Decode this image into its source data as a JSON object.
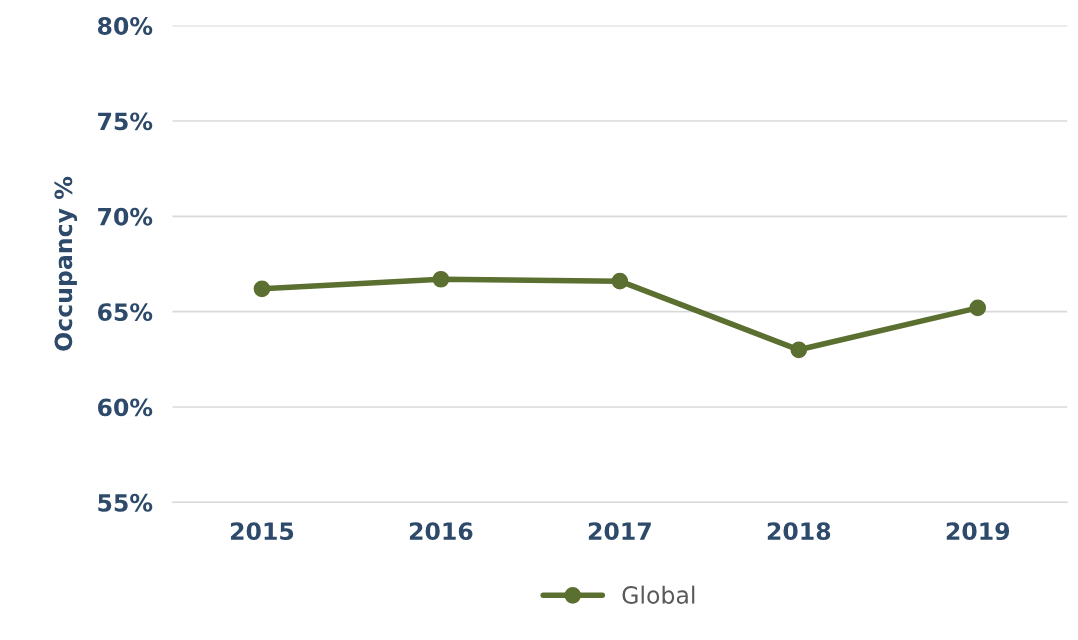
{
  "chart_data": {
    "type": "line",
    "ylabel": "Occupancy %",
    "categories": [
      "2015",
      "2016",
      "2017",
      "2018",
      "2019"
    ],
    "series": [
      {
        "name": "Global",
        "color": "#5b7030",
        "values": [
          66.2,
          66.7,
          66.6,
          63.0,
          65.2
        ]
      }
    ],
    "ylim": [
      55,
      80
    ],
    "yticks": [
      {
        "value": 55,
        "label": "55%"
      },
      {
        "value": 60,
        "label": "60%"
      },
      {
        "value": 65,
        "label": "65%"
      },
      {
        "value": 70,
        "label": "70%"
      },
      {
        "value": 75,
        "label": "75%"
      },
      {
        "value": 80,
        "label": "80%"
      }
    ],
    "grid": "y",
    "legend": "bottom",
    "marker": "circle",
    "line_style": "solid"
  }
}
